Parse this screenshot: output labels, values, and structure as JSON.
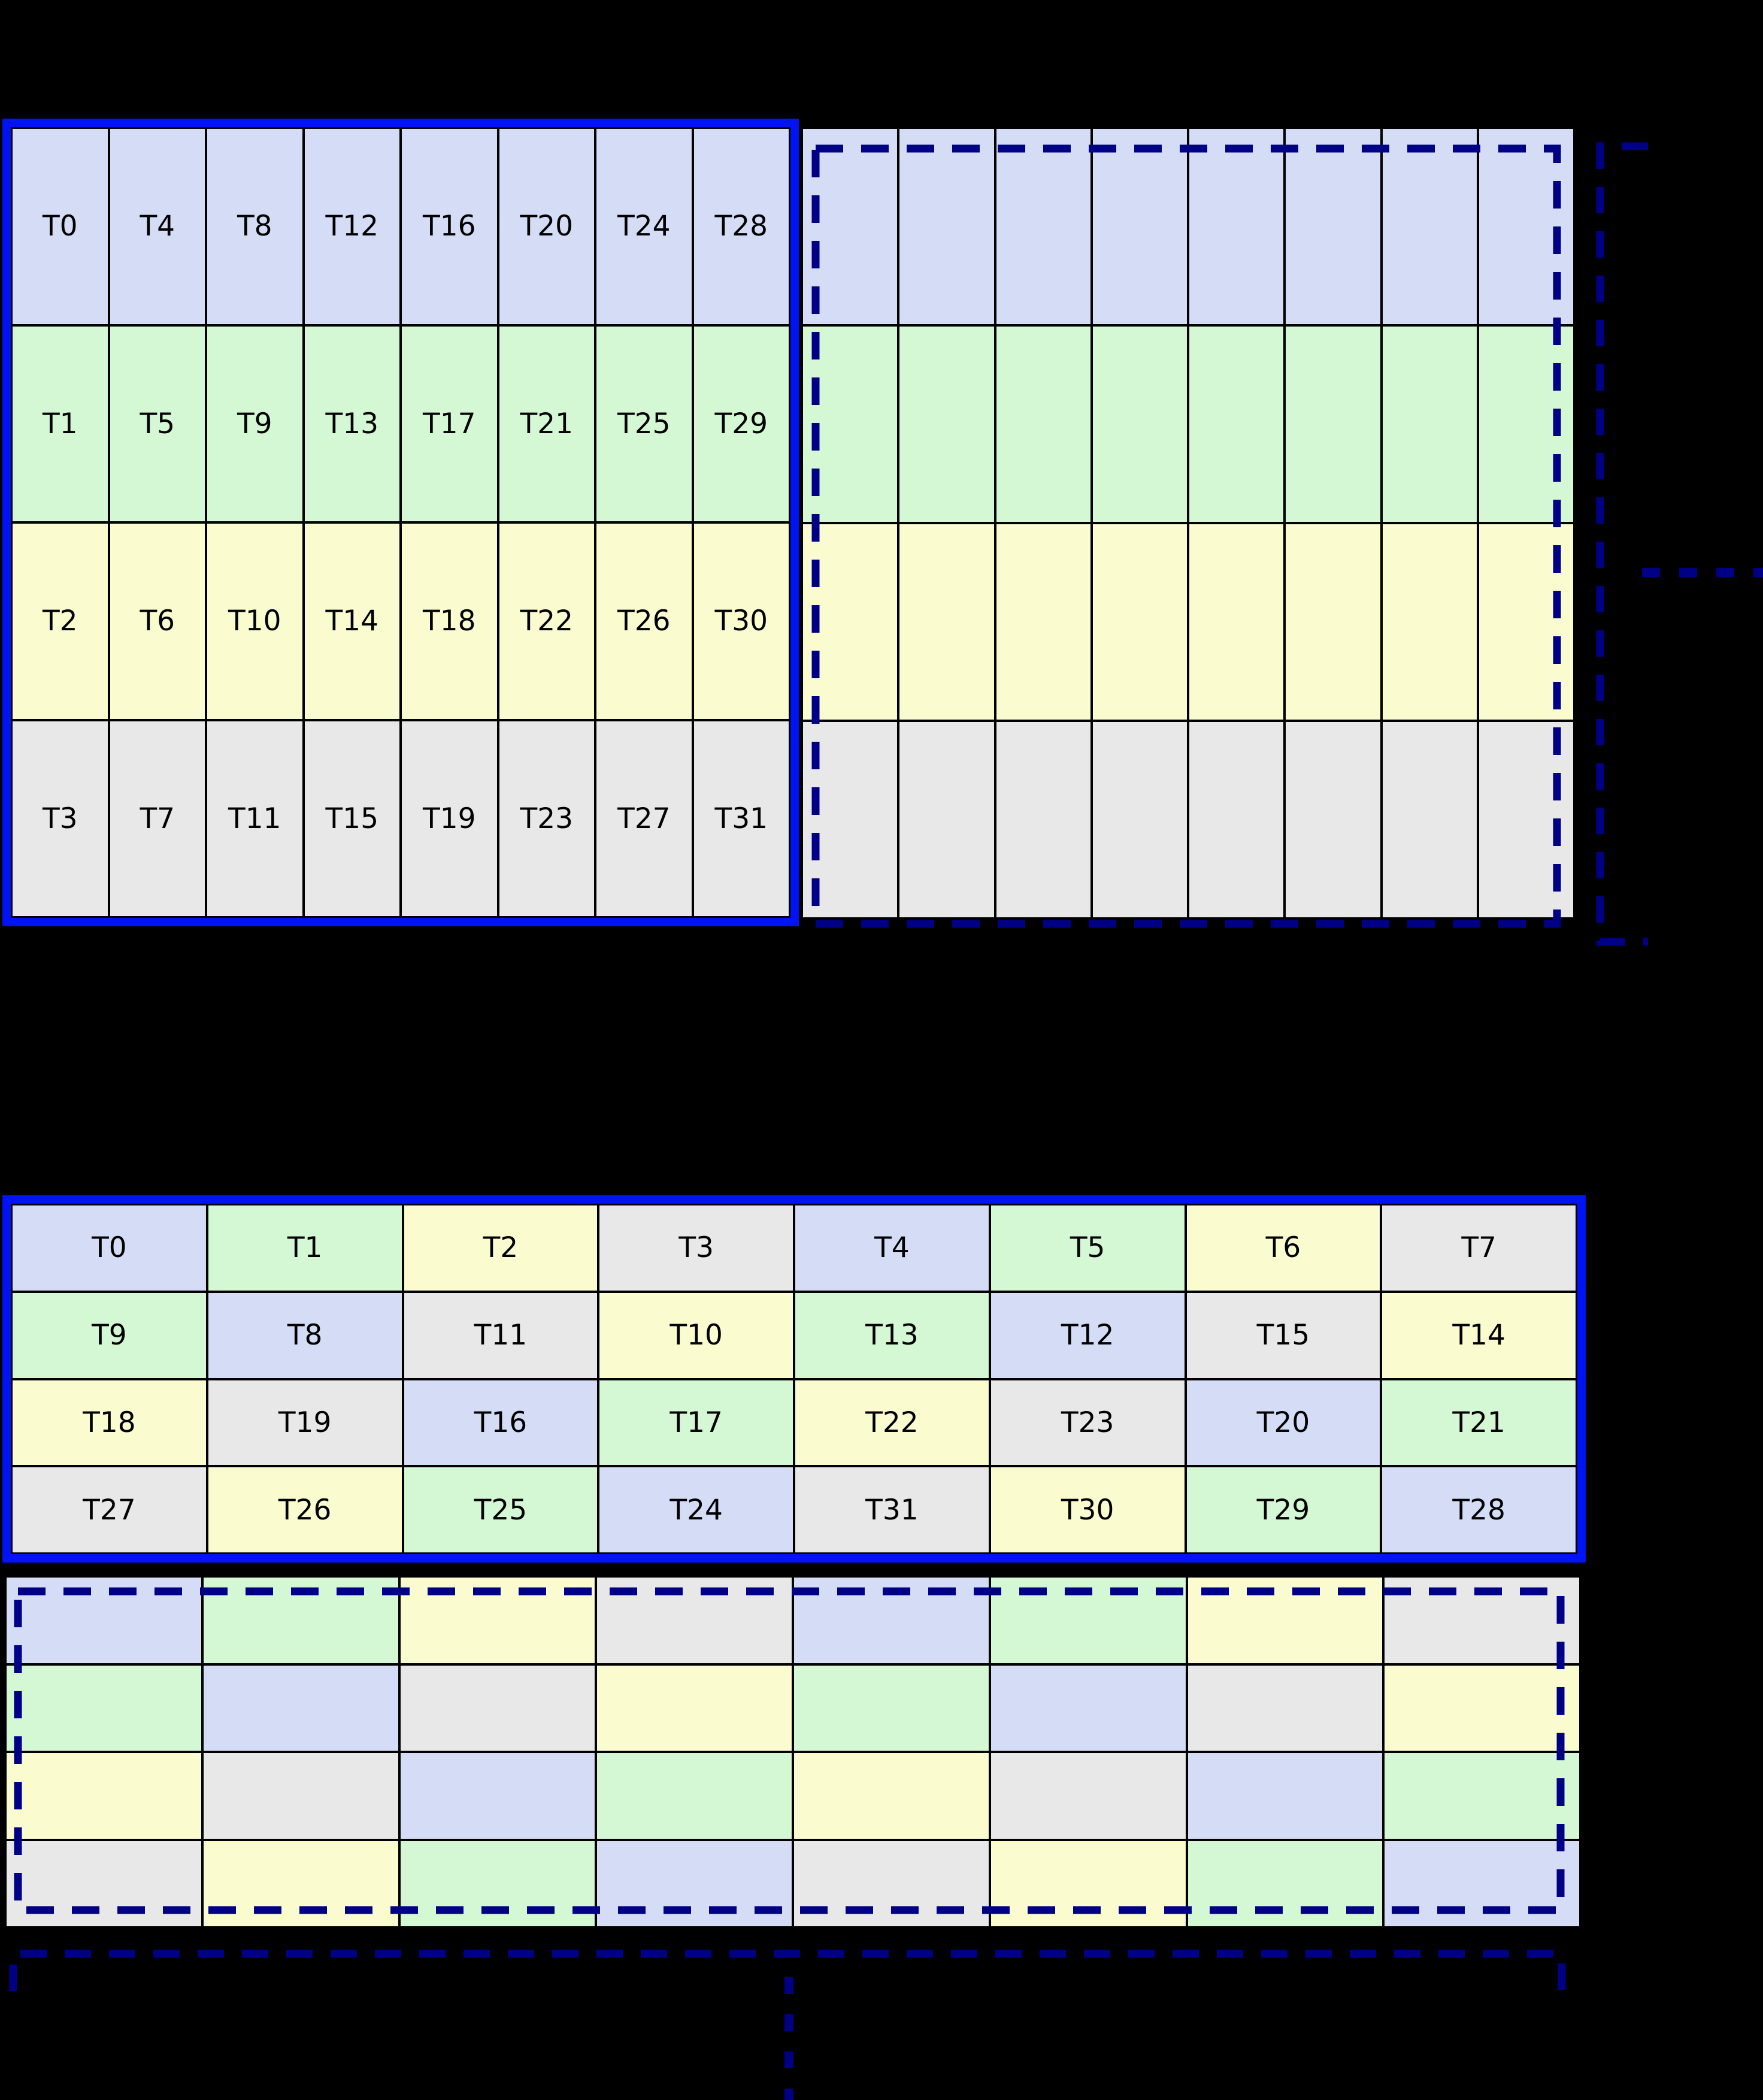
{
  "background": "#000000",
  "colors": {
    "blue": "#d4dcf6",
    "green": "#d4f7d4",
    "yellow": "#fbfbd0",
    "gray": "#e8e8e8"
  },
  "borders": {
    "thick_blue": "#0013f2",
    "dashed_navy": "#000087",
    "cell_black": "#000000"
  },
  "top_figure": {
    "labeled_block": {
      "rows": 4,
      "cols": 8,
      "ordering": "column-major",
      "cells": [
        [
          {
            "label": "T0",
            "color": "blue"
          },
          {
            "label": "T4",
            "color": "blue"
          },
          {
            "label": "T8",
            "color": "blue"
          },
          {
            "label": "T12",
            "color": "blue"
          },
          {
            "label": "T16",
            "color": "blue"
          },
          {
            "label": "T20",
            "color": "blue"
          },
          {
            "label": "T24",
            "color": "blue"
          },
          {
            "label": "T28",
            "color": "blue"
          }
        ],
        [
          {
            "label": "T1",
            "color": "green"
          },
          {
            "label": "T5",
            "color": "green"
          },
          {
            "label": "T9",
            "color": "green"
          },
          {
            "label": "T13",
            "color": "green"
          },
          {
            "label": "T17",
            "color": "green"
          },
          {
            "label": "T21",
            "color": "green"
          },
          {
            "label": "T25",
            "color": "green"
          },
          {
            "label": "T29",
            "color": "green"
          }
        ],
        [
          {
            "label": "T2",
            "color": "yellow"
          },
          {
            "label": "T6",
            "color": "yellow"
          },
          {
            "label": "T10",
            "color": "yellow"
          },
          {
            "label": "T14",
            "color": "yellow"
          },
          {
            "label": "T18",
            "color": "yellow"
          },
          {
            "label": "T22",
            "color": "yellow"
          },
          {
            "label": "T26",
            "color": "yellow"
          },
          {
            "label": "T30",
            "color": "yellow"
          }
        ],
        [
          {
            "label": "T3",
            "color": "gray"
          },
          {
            "label": "T7",
            "color": "gray"
          },
          {
            "label": "T11",
            "color": "gray"
          },
          {
            "label": "T15",
            "color": "gray"
          },
          {
            "label": "T19",
            "color": "gray"
          },
          {
            "label": "T23",
            "color": "gray"
          },
          {
            "label": "T27",
            "color": "gray"
          },
          {
            "label": "T31",
            "color": "gray"
          }
        ]
      ]
    },
    "unlabeled_block": {
      "rows": 4,
      "cols": 8,
      "cells": [
        [
          {
            "color": "blue"
          },
          {
            "color": "blue"
          },
          {
            "color": "blue"
          },
          {
            "color": "blue"
          },
          {
            "color": "blue"
          },
          {
            "color": "blue"
          },
          {
            "color": "blue"
          },
          {
            "color": "blue"
          }
        ],
        [
          {
            "color": "green"
          },
          {
            "color": "green"
          },
          {
            "color": "green"
          },
          {
            "color": "green"
          },
          {
            "color": "green"
          },
          {
            "color": "green"
          },
          {
            "color": "green"
          },
          {
            "color": "green"
          }
        ],
        [
          {
            "color": "yellow"
          },
          {
            "color": "yellow"
          },
          {
            "color": "yellow"
          },
          {
            "color": "yellow"
          },
          {
            "color": "yellow"
          },
          {
            "color": "yellow"
          },
          {
            "color": "yellow"
          },
          {
            "color": "yellow"
          }
        ],
        [
          {
            "color": "gray"
          },
          {
            "color": "gray"
          },
          {
            "color": "gray"
          },
          {
            "color": "gray"
          },
          {
            "color": "gray"
          },
          {
            "color": "gray"
          },
          {
            "color": "gray"
          },
          {
            "color": "gray"
          }
        ]
      ]
    },
    "continuation": {
      "bracket": "right",
      "ellipsis": "horizontal"
    }
  },
  "bottom_figure": {
    "labeled_block": {
      "rows": 4,
      "cols": 8,
      "ordering": "row-major swizzled",
      "cells": [
        [
          {
            "label": "T0",
            "color": "blue"
          },
          {
            "label": "T1",
            "color": "green"
          },
          {
            "label": "T2",
            "color": "yellow"
          },
          {
            "label": "T3",
            "color": "gray"
          },
          {
            "label": "T4",
            "color": "blue"
          },
          {
            "label": "T5",
            "color": "green"
          },
          {
            "label": "T6",
            "color": "yellow"
          },
          {
            "label": "T7",
            "color": "gray"
          }
        ],
        [
          {
            "label": "T9",
            "color": "green"
          },
          {
            "label": "T8",
            "color": "blue"
          },
          {
            "label": "T11",
            "color": "gray"
          },
          {
            "label": "T10",
            "color": "yellow"
          },
          {
            "label": "T13",
            "color": "green"
          },
          {
            "label": "T12",
            "color": "blue"
          },
          {
            "label": "T15",
            "color": "gray"
          },
          {
            "label": "T14",
            "color": "yellow"
          }
        ],
        [
          {
            "label": "T18",
            "color": "yellow"
          },
          {
            "label": "T19",
            "color": "gray"
          },
          {
            "label": "T16",
            "color": "blue"
          },
          {
            "label": "T17",
            "color": "green"
          },
          {
            "label": "T22",
            "color": "yellow"
          },
          {
            "label": "T23",
            "color": "gray"
          },
          {
            "label": "T20",
            "color": "blue"
          },
          {
            "label": "T21",
            "color": "green"
          }
        ],
        [
          {
            "label": "T27",
            "color": "gray"
          },
          {
            "label": "T26",
            "color": "yellow"
          },
          {
            "label": "T25",
            "color": "green"
          },
          {
            "label": "T24",
            "color": "blue"
          },
          {
            "label": "T31",
            "color": "gray"
          },
          {
            "label": "T30",
            "color": "yellow"
          },
          {
            "label": "T29",
            "color": "green"
          },
          {
            "label": "T28",
            "color": "blue"
          }
        ]
      ]
    },
    "unlabeled_block": {
      "rows": 4,
      "cols": 8,
      "cells": [
        [
          {
            "color": "blue"
          },
          {
            "color": "green"
          },
          {
            "color": "yellow"
          },
          {
            "color": "gray"
          },
          {
            "color": "blue"
          },
          {
            "color": "green"
          },
          {
            "color": "yellow"
          },
          {
            "color": "gray"
          }
        ],
        [
          {
            "color": "green"
          },
          {
            "color": "blue"
          },
          {
            "color": "gray"
          },
          {
            "color": "yellow"
          },
          {
            "color": "green"
          },
          {
            "color": "blue"
          },
          {
            "color": "gray"
          },
          {
            "color": "yellow"
          }
        ],
        [
          {
            "color": "yellow"
          },
          {
            "color": "gray"
          },
          {
            "color": "blue"
          },
          {
            "color": "green"
          },
          {
            "color": "yellow"
          },
          {
            "color": "gray"
          },
          {
            "color": "blue"
          },
          {
            "color": "green"
          }
        ],
        [
          {
            "color": "gray"
          },
          {
            "color": "yellow"
          },
          {
            "color": "green"
          },
          {
            "color": "blue"
          },
          {
            "color": "gray"
          },
          {
            "color": "yellow"
          },
          {
            "color": "green"
          },
          {
            "color": "blue"
          }
        ]
      ]
    },
    "continuation": {
      "bracket": "bottom",
      "ellipsis": "vertical"
    }
  }
}
